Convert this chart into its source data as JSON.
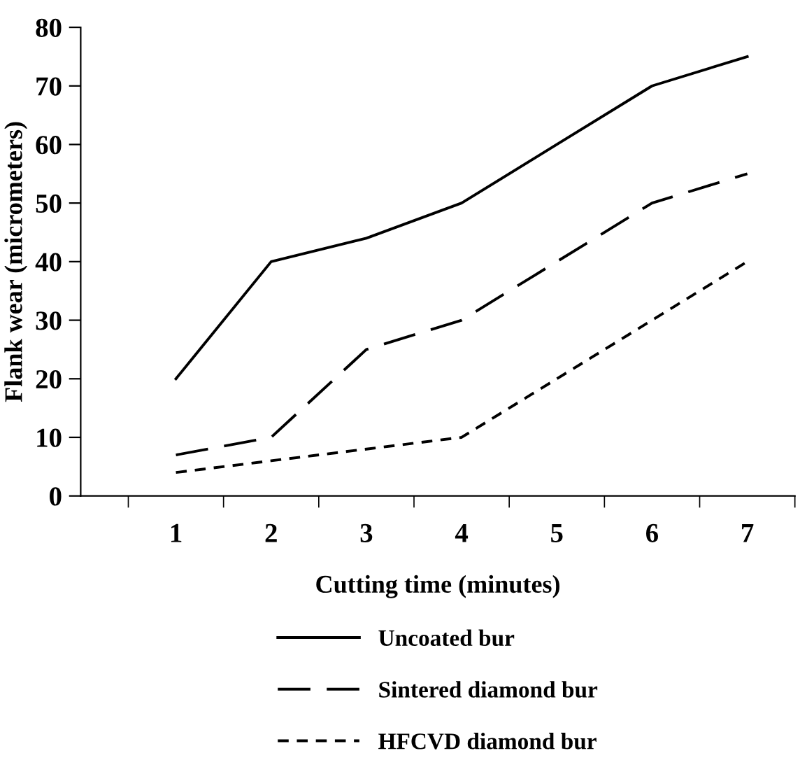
{
  "chart_data": {
    "type": "line",
    "xlabel": "Cutting time (minutes)",
    "ylabel": "Flank wear (micrometers)",
    "categories": [
      "1",
      "2",
      "3",
      "4",
      "5",
      "6",
      "7"
    ],
    "series": [
      {
        "name": "Uncoated bur",
        "color": "#000000",
        "line_style": "solid",
        "values": [
          20,
          40,
          44,
          50,
          60,
          70,
          75
        ]
      },
      {
        "name": "Sintered diamond bur",
        "color": "#000000",
        "line_style": "dashed",
        "values": [
          7,
          10,
          25,
          30,
          40,
          50,
          55
        ]
      },
      {
        "name": "HFCVD diamond bur",
        "color": "#000000",
        "line_style": "dotted",
        "values": [
          4,
          6,
          8,
          10,
          20,
          30,
          40
        ]
      }
    ],
    "ylim": [
      0,
      80
    ],
    "yticks": [
      0,
      10,
      20,
      30,
      40,
      50,
      60,
      70,
      80
    ],
    "grid": false,
    "legend": "bottom",
    "marker": "none"
  }
}
